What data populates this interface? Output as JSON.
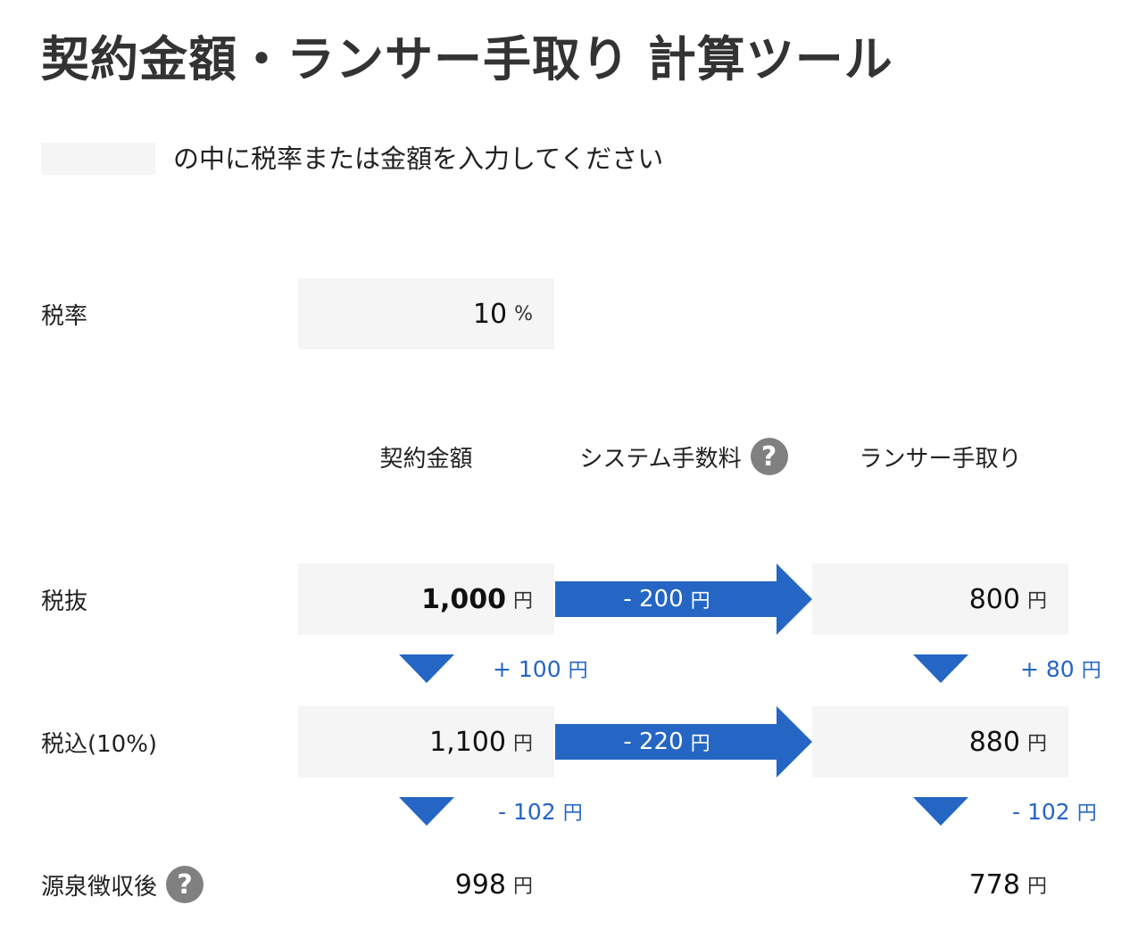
{
  "page": {
    "title": "契約金額・ランサー手取り 計算ツール",
    "instruction": "の中に税率または金額を入力してください"
  },
  "tax_rate": {
    "label": "税率",
    "value": "10",
    "unit": "%"
  },
  "columns": {
    "contract": "契約金額",
    "fee": "システム手数料",
    "lancer": "ランサー手取り"
  },
  "currency_unit": "円",
  "rows": {
    "excl": {
      "label": "税抜",
      "contract": "1,000",
      "fee": "- 200",
      "lancer": "800"
    },
    "incl": {
      "label": "税込(10%)",
      "contract": "1,100",
      "fee": "- 220",
      "lancer": "880"
    },
    "withholding": {
      "label": "源泉徴収後",
      "contract": "998",
      "lancer": "778"
    }
  },
  "diffs": {
    "contract_tax": "+ 100",
    "lancer_tax": "+ 80",
    "contract_withholding": "- 102",
    "lancer_withholding": "- 102"
  },
  "icons": {
    "help": "?",
    "help_icon_name": "question-circle-icon"
  },
  "colors": {
    "accent": "#2566c4",
    "input_bg": "#f5f5f5",
    "help_icon": "#808080"
  }
}
